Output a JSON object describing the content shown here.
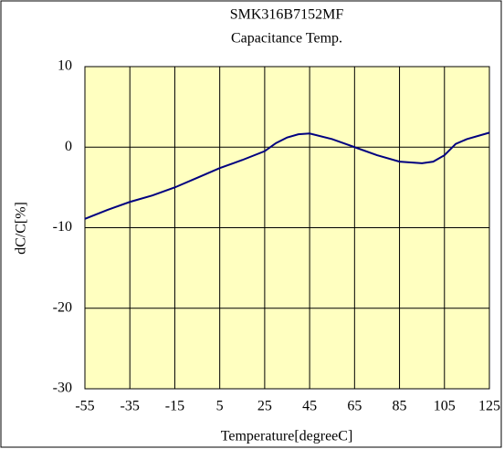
{
  "chart_data": {
    "type": "line",
    "title": "SMK316B7152MF",
    "subtitle": "Capacitance Temp.",
    "x_label": "Temperature[degreeC]",
    "y_label": "dC/C[%]",
    "x": [
      -55,
      -45,
      -35,
      -25,
      -15,
      -5,
      5,
      15,
      25,
      30,
      35,
      40,
      45,
      55,
      65,
      75,
      85,
      95,
      100,
      105,
      110,
      115,
      125
    ],
    "series": [
      {
        "name": "dC/C",
        "color": "#000080",
        "values": [
          -8.9,
          -7.8,
          -6.8,
          -6.0,
          -5.0,
          -3.8,
          -2.6,
          -1.6,
          -0.5,
          0.5,
          1.2,
          1.6,
          1.7,
          1.0,
          0.0,
          -1.0,
          -1.8,
          -2.0,
          -1.8,
          -1.0,
          0.4,
          1.0,
          1.8
        ]
      }
    ],
    "xlim": [
      -55,
      125
    ],
    "xticks": [
      -55,
      -35,
      -15,
      5,
      25,
      45,
      65,
      85,
      105,
      125
    ],
    "xgrid": [
      -55,
      -35,
      -15,
      5,
      25,
      45,
      65,
      85,
      105,
      125
    ],
    "ylim": [
      -30,
      10
    ],
    "yticks": [
      -30,
      -20,
      -10,
      0,
      10
    ],
    "grid": true,
    "plot_background": "#ffffc0"
  }
}
